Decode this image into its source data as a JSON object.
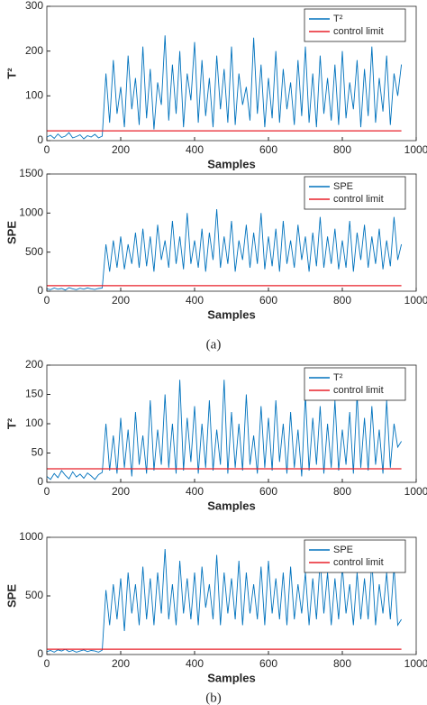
{
  "chart_data": [
    {
      "type": "line",
      "xlabel": "Samples",
      "ylabel": "T²",
      "xlim": [
        0,
        1000
      ],
      "ylim": [
        0,
        300
      ],
      "xticks": [
        0,
        200,
        400,
        600,
        800,
        1000
      ],
      "yticks": [
        0,
        100,
        200,
        300
      ],
      "legend": "upper right",
      "series": [
        {
          "name": "T²",
          "color": "#0072bd",
          "x": [
            0,
            10,
            20,
            30,
            40,
            50,
            60,
            70,
            80,
            90,
            100,
            110,
            120,
            130,
            140,
            150,
            160,
            170,
            180,
            190,
            200,
            210,
            220,
            230,
            240,
            250,
            260,
            270,
            280,
            290,
            300,
            310,
            320,
            330,
            340,
            350,
            360,
            370,
            380,
            390,
            400,
            410,
            420,
            430,
            440,
            450,
            460,
            470,
            480,
            490,
            500,
            510,
            520,
            530,
            540,
            550,
            560,
            570,
            580,
            590,
            600,
            610,
            620,
            630,
            640,
            650,
            660,
            670,
            680,
            690,
            700,
            710,
            720,
            730,
            740,
            750,
            760,
            770,
            780,
            790,
            800,
            810,
            820,
            830,
            840,
            850,
            860,
            870,
            880,
            890,
            900,
            910,
            920,
            930,
            940,
            950,
            960
          ],
          "values": [
            8,
            12,
            5,
            15,
            7,
            10,
            18,
            6,
            9,
            13,
            4,
            11,
            8,
            14,
            6,
            10,
            150,
            40,
            180,
            60,
            120,
            30,
            190,
            70,
            140,
            35,
            210,
            50,
            160,
            25,
            130,
            80,
            235,
            45,
            170,
            60,
            200,
            30,
            150,
            90,
            220,
            40,
            180,
            55,
            140,
            30,
            190,
            70,
            160,
            40,
            210,
            35,
            150,
            80,
            120,
            45,
            230,
            60,
            170,
            30,
            140,
            50,
            200,
            40,
            160,
            70,
            130,
            35,
            180,
            55,
            210,
            40,
            150,
            30,
            190,
            60,
            140,
            45,
            170,
            35,
            200,
            50,
            130,
            70,
            180,
            30,
            160,
            55,
            210,
            40,
            140,
            65,
            190,
            35,
            150,
            100,
            170
          ]
        },
        {
          "name": "control limit",
          "color": "#e8202a",
          "x": [
            0,
            960
          ],
          "values": [
            22,
            22
          ]
        }
      ]
    },
    {
      "type": "line",
      "xlabel": "Samples",
      "ylabel": "SPE",
      "xlim": [
        0,
        1000
      ],
      "ylim": [
        0,
        1500
      ],
      "xticks": [
        0,
        200,
        400,
        600,
        800,
        1000
      ],
      "yticks": [
        0,
        500,
        1000,
        1500
      ],
      "legend": "upper right",
      "series": [
        {
          "name": "SPE",
          "color": "#0072bd",
          "x": [
            0,
            10,
            20,
            30,
            40,
            50,
            60,
            70,
            80,
            90,
            100,
            110,
            120,
            130,
            140,
            150,
            160,
            170,
            180,
            190,
            200,
            210,
            220,
            230,
            240,
            250,
            260,
            270,
            280,
            290,
            300,
            310,
            320,
            330,
            340,
            350,
            360,
            370,
            380,
            390,
            400,
            410,
            420,
            430,
            440,
            450,
            460,
            470,
            480,
            490,
            500,
            510,
            520,
            530,
            540,
            550,
            560,
            570,
            580,
            590,
            600,
            610,
            620,
            630,
            640,
            650,
            660,
            670,
            680,
            690,
            700,
            710,
            720,
            730,
            740,
            750,
            760,
            770,
            780,
            790,
            800,
            810,
            820,
            830,
            840,
            850,
            860,
            870,
            880,
            890,
            900,
            910,
            920,
            930,
            940,
            950,
            960
          ],
          "values": [
            30,
            20,
            40,
            25,
            35,
            15,
            45,
            30,
            20,
            38,
            25,
            42,
            30,
            22,
            35,
            40,
            600,
            250,
            650,
            300,
            700,
            280,
            600,
            350,
            750,
            300,
            800,
            320,
            700,
            250,
            850,
            400,
            650,
            300,
            900,
            350,
            700,
            280,
            1000,
            350,
            650,
            300,
            800,
            250,
            750,
            400,
            1050,
            300,
            700,
            350,
            900,
            250,
            650,
            400,
            850,
            300,
            750,
            350,
            1000,
            280,
            700,
            320,
            800,
            250,
            900,
            350,
            650,
            300,
            850,
            400,
            700,
            250,
            750,
            320,
            950,
            300,
            700,
            350,
            800,
            280,
            650,
            300,
            900,
            250,
            750,
            400,
            850,
            300,
            700,
            350,
            800,
            280,
            650,
            320,
            950,
            400,
            600
          ]
        },
        {
          "name": "control limit",
          "color": "#e8202a",
          "x": [
            0,
            960
          ],
          "values": [
            70,
            70
          ]
        }
      ]
    },
    {
      "type": "line",
      "xlabel": "Samples",
      "ylabel": "T²",
      "xlim": [
        0,
        1000
      ],
      "ylim": [
        0,
        200
      ],
      "xticks": [
        0,
        200,
        400,
        600,
        800,
        1000
      ],
      "yticks": [
        0,
        50,
        100,
        150,
        200
      ],
      "legend": "upper right",
      "series": [
        {
          "name": "T²",
          "color": "#0072bd",
          "x": [
            0,
            10,
            20,
            30,
            40,
            50,
            60,
            70,
            80,
            90,
            100,
            110,
            120,
            130,
            140,
            150,
            160,
            170,
            180,
            190,
            200,
            210,
            220,
            230,
            240,
            250,
            260,
            270,
            280,
            290,
            300,
            310,
            320,
            330,
            340,
            350,
            360,
            370,
            380,
            390,
            400,
            410,
            420,
            430,
            440,
            450,
            460,
            470,
            480,
            490,
            500,
            510,
            520,
            530,
            540,
            550,
            560,
            570,
            580,
            590,
            600,
            610,
            620,
            630,
            640,
            650,
            660,
            670,
            680,
            690,
            700,
            710,
            720,
            730,
            740,
            750,
            760,
            770,
            780,
            790,
            800,
            810,
            820,
            830,
            840,
            850,
            860,
            870,
            880,
            890,
            900,
            910,
            920,
            930,
            940,
            950,
            960
          ],
          "values": [
            10,
            5,
            15,
            8,
            20,
            12,
            6,
            18,
            9,
            14,
            7,
            16,
            11,
            5,
            13,
            17,
            100,
            20,
            80,
            15,
            110,
            25,
            90,
            10,
            120,
            30,
            80,
            15,
            140,
            20,
            90,
            30,
            150,
            25,
            100,
            15,
            175,
            20,
            110,
            35,
            130,
            15,
            100,
            25,
            140,
            20,
            90,
            30,
            175,
            15,
            120,
            25,
            100,
            20,
            150,
            30,
            80,
            15,
            130,
            25,
            110,
            20,
            140,
            35,
            100,
            15,
            120,
            25,
            90,
            10,
            150,
            20,
            110,
            30,
            130,
            15,
            100,
            25,
            140,
            20,
            90,
            30,
            120,
            15,
            150,
            25,
            110,
            20,
            130,
            30,
            90,
            15,
            140,
            25,
            100,
            60,
            70
          ]
        },
        {
          "name": "control limit",
          "color": "#e8202a",
          "x": [
            0,
            960
          ],
          "values": [
            23,
            23
          ]
        }
      ]
    },
    {
      "type": "line",
      "xlabel": "Samples",
      "ylabel": "SPE",
      "xlim": [
        0,
        1000
      ],
      "ylim": [
        0,
        1000
      ],
      "xticks": [
        0,
        200,
        400,
        600,
        800,
        1000
      ],
      "yticks": [
        0,
        500,
        1000
      ],
      "legend": "upper right",
      "series": [
        {
          "name": "SPE",
          "color": "#0072bd",
          "x": [
            0,
            10,
            20,
            30,
            40,
            50,
            60,
            70,
            80,
            90,
            100,
            110,
            120,
            130,
            140,
            150,
            160,
            170,
            180,
            190,
            200,
            210,
            220,
            230,
            240,
            250,
            260,
            270,
            280,
            290,
            300,
            310,
            320,
            330,
            340,
            350,
            360,
            370,
            380,
            390,
            400,
            410,
            420,
            430,
            440,
            450,
            460,
            470,
            480,
            490,
            500,
            510,
            520,
            530,
            540,
            550,
            560,
            570,
            580,
            590,
            600,
            610,
            620,
            630,
            640,
            650,
            660,
            670,
            680,
            690,
            700,
            710,
            720,
            730,
            740,
            750,
            760,
            770,
            780,
            790,
            800,
            810,
            820,
            830,
            840,
            850,
            860,
            870,
            880,
            890,
            900,
            910,
            920,
            930,
            940,
            950,
            960
          ],
          "values": [
            25,
            35,
            20,
            40,
            30,
            45,
            25,
            35,
            20,
            30,
            40,
            25,
            35,
            30,
            20,
            38,
            550,
            250,
            600,
            300,
            650,
            200,
            700,
            350,
            600,
            250,
            750,
            300,
            650,
            250,
            700,
            350,
            900,
            300,
            600,
            250,
            800,
            350,
            650,
            300,
            700,
            250,
            750,
            400,
            600,
            300,
            850,
            250,
            700,
            350,
            650,
            300,
            800,
            250,
            700,
            350,
            600,
            300,
            750,
            250,
            800,
            350,
            650,
            300,
            700,
            250,
            750,
            300,
            600,
            350,
            700,
            250,
            650,
            300,
            800,
            350,
            700,
            250,
            650,
            300,
            750,
            350,
            600,
            250,
            700,
            300,
            650,
            300,
            800,
            250,
            600,
            350,
            700,
            300,
            750,
            250,
            300
          ]
        },
        {
          "name": "control limit",
          "color": "#e8202a",
          "x": [
            0,
            960
          ],
          "values": [
            45,
            45
          ]
        }
      ]
    }
  ],
  "captions": [
    "(a)",
    "(b)"
  ]
}
